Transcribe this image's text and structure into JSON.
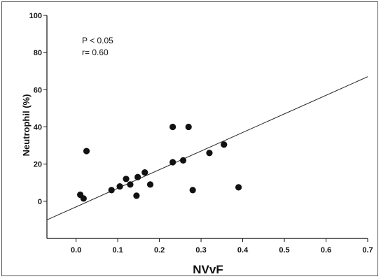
{
  "chart_data": {
    "type": "scatter",
    "title": "",
    "xlabel": "NVvF",
    "ylabel": "Neutrophil  (%)",
    "xlim": [
      -0.07,
      0.7
    ],
    "ylim": [
      -20,
      100
    ],
    "x_ticks": [
      0,
      0.1,
      0.2,
      0.3,
      0.4,
      0.5,
      0.6,
      0.7
    ],
    "x_tick_labels": [
      "0.0",
      "0.1",
      "0.2",
      "0.3",
      "0.4",
      "0.5",
      "0.6",
      "0.7"
    ],
    "y_ticks": [
      0,
      20,
      40,
      60,
      80,
      100
    ],
    "y_tick_labels": [
      "0",
      "20",
      "40",
      "60",
      "80",
      "100"
    ],
    "annotations": [
      "P < 0.05",
      "r= 0.60"
    ],
    "grid": false,
    "points": [
      {
        "x": 0.01,
        "y": 3.5
      },
      {
        "x": 0.018,
        "y": 1.5
      },
      {
        "x": 0.025,
        "y": 27
      },
      {
        "x": 0.085,
        "y": 6
      },
      {
        "x": 0.105,
        "y": 8
      },
      {
        "x": 0.12,
        "y": 12
      },
      {
        "x": 0.13,
        "y": 9
      },
      {
        "x": 0.145,
        "y": 3
      },
      {
        "x": 0.148,
        "y": 13
      },
      {
        "x": 0.165,
        "y": 15.5
      },
      {
        "x": 0.178,
        "y": 9
      },
      {
        "x": 0.232,
        "y": 40
      },
      {
        "x": 0.232,
        "y": 21
      },
      {
        "x": 0.257,
        "y": 22
      },
      {
        "x": 0.27,
        "y": 40
      },
      {
        "x": 0.28,
        "y": 6
      },
      {
        "x": 0.32,
        "y": 26
      },
      {
        "x": 0.355,
        "y": 30.5
      },
      {
        "x": 0.39,
        "y": 7.5
      }
    ],
    "regression_line": {
      "x": [
        -0.07,
        0.7
      ],
      "y": [
        -10,
        67
      ]
    }
  }
}
